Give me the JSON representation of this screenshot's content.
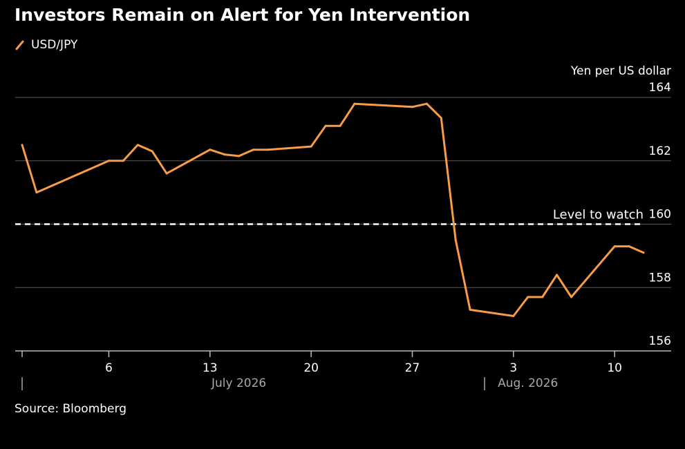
{
  "header": {
    "title": "Investors Remain on Alert for Yen Intervention"
  },
  "legend": {
    "label": "USD/JPY"
  },
  "footer": {
    "source": "Source: Bloomberg"
  },
  "colors": {
    "series": "#f89c47",
    "grid": "#5a5a5a",
    "background": "#000000",
    "text": "#ffffff",
    "month_label": "#a8a8a8"
  },
  "chart_data": {
    "type": "line",
    "title": "Investors Remain on Alert for Yen Intervention",
    "ylabel": "Yen per US dollar",
    "ylim": [
      156,
      164
    ],
    "yticks": [
      164,
      162,
      160,
      158,
      156
    ],
    "y_axis_position": "right",
    "grid": true,
    "legend_position": "top-left",
    "xlim": [
      "2026-06-30",
      "2026-08-12"
    ],
    "x_ticks": [
      {
        "date": "2026-06-30",
        "label": ""
      },
      {
        "date": "2026-07-06",
        "label": "6"
      },
      {
        "date": "2026-07-13",
        "label": "13"
      },
      {
        "date": "2026-07-20",
        "label": "20"
      },
      {
        "date": "2026-07-27",
        "label": "27"
      },
      {
        "date": "2026-08-03",
        "label": "3"
      },
      {
        "date": "2026-08-10",
        "label": "10"
      }
    ],
    "month_labels": [
      {
        "label": "July 2026",
        "date": "2026-07-15"
      },
      {
        "label": "Aug. 2026",
        "date": "2026-08-04"
      }
    ],
    "month_separators": [
      "2026-06-30",
      "2026-08-01"
    ],
    "reference_line": {
      "y": 160,
      "label": "Level to watch"
    },
    "series": [
      {
        "name": "USD/JPY",
        "points": [
          {
            "x": "2026-06-30",
            "y": 162.5
          },
          {
            "x": "2026-07-01",
            "y": 161.0
          },
          {
            "x": "2026-07-06",
            "y": 162.0
          },
          {
            "x": "2026-07-07",
            "y": 162.0
          },
          {
            "x": "2026-07-08",
            "y": 162.5
          },
          {
            "x": "2026-07-09",
            "y": 162.3
          },
          {
            "x": "2026-07-10",
            "y": 161.6
          },
          {
            "x": "2026-07-13",
            "y": 162.35
          },
          {
            "x": "2026-07-14",
            "y": 162.2
          },
          {
            "x": "2026-07-15",
            "y": 162.15
          },
          {
            "x": "2026-07-16",
            "y": 162.35
          },
          {
            "x": "2026-07-17",
            "y": 162.35
          },
          {
            "x": "2026-07-20",
            "y": 162.45
          },
          {
            "x": "2026-07-21",
            "y": 163.1
          },
          {
            "x": "2026-07-22",
            "y": 163.1
          },
          {
            "x": "2026-07-23",
            "y": 163.8
          },
          {
            "x": "2026-07-27",
            "y": 163.7
          },
          {
            "x": "2026-07-28",
            "y": 163.8
          },
          {
            "x": "2026-07-29",
            "y": 163.35
          },
          {
            "x": "2026-07-30",
            "y": 159.5
          },
          {
            "x": "2026-07-31",
            "y": 157.3
          },
          {
            "x": "2026-08-03",
            "y": 157.1
          },
          {
            "x": "2026-08-04",
            "y": 157.7
          },
          {
            "x": "2026-08-05",
            "y": 157.7
          },
          {
            "x": "2026-08-06",
            "y": 158.4
          },
          {
            "x": "2026-08-07",
            "y": 157.7
          },
          {
            "x": "2026-08-10",
            "y": 159.3
          },
          {
            "x": "2026-08-11",
            "y": 159.3
          },
          {
            "x": "2026-08-12",
            "y": 159.1
          }
        ]
      }
    ]
  }
}
